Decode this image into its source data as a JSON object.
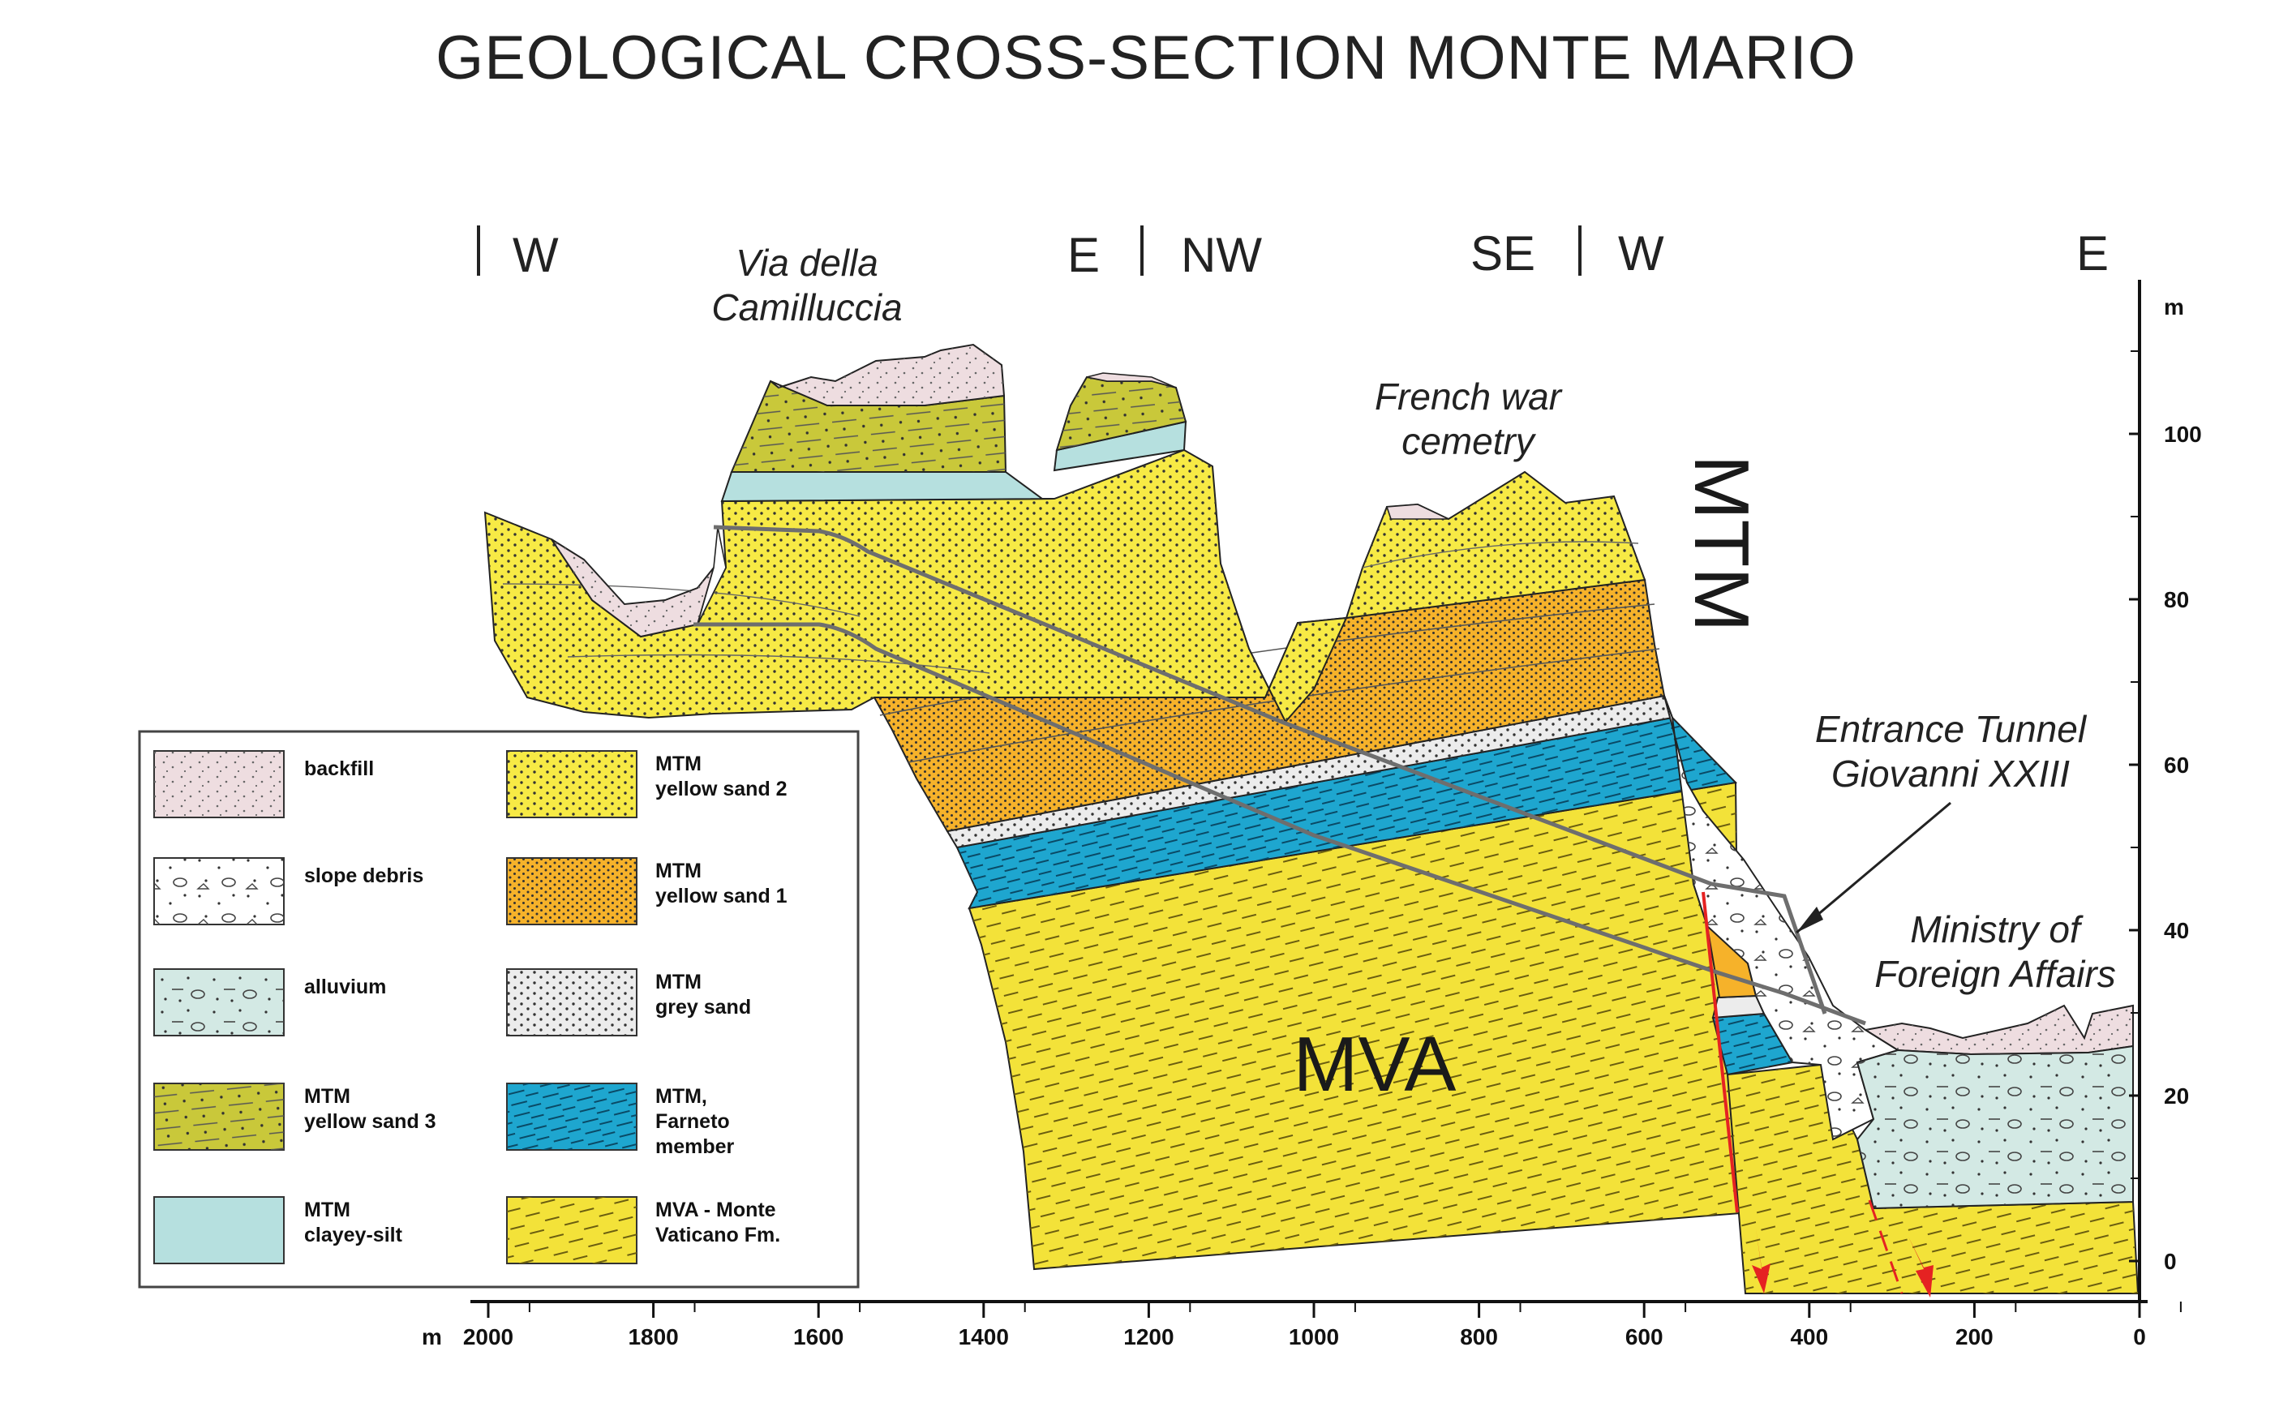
{
  "title": "GEOLOGICAL CROSS-SECTION MONTE MARIO",
  "section_directions": [
    "W",
    "E",
    "NW",
    "SE",
    "W",
    "E"
  ],
  "place_labels": {
    "via_camilluccia": [
      "Via della",
      "Camilluccia"
    ],
    "french_cemetery": [
      "French war",
      "cemetry"
    ],
    "tunnel_entrance": [
      "Entrance Tunnel",
      "Giovanni XXIII"
    ],
    "ministry": [
      "Ministry of",
      "Foreign Affairs"
    ]
  },
  "unit_labels": {
    "mtm": "MTM",
    "mva": "MVA"
  },
  "x_axis": {
    "unit": "m",
    "ticks": [
      "2000",
      "1800",
      "1600",
      "1400",
      "1200",
      "1000",
      "800",
      "600",
      "400",
      "200",
      "0"
    ]
  },
  "y_axis": {
    "unit": "m",
    "ticks": [
      "100",
      "80",
      "60",
      "40",
      "20",
      "0"
    ]
  },
  "legend": [
    {
      "lines": [
        "backfill"
      ],
      "color": "#eedde0",
      "pattern": "backfill"
    },
    {
      "lines": [
        "slope debris"
      ],
      "color": "#ffffff",
      "pattern": "debris"
    },
    {
      "lines": [
        "alluvium"
      ],
      "color": "#d3e9e4",
      "pattern": "alluvium"
    },
    {
      "lines": [
        "MTM",
        "yellow sand 3"
      ],
      "color": "#c9c83a",
      "pattern": "ys3"
    },
    {
      "lines": [
        "MTM",
        "clayey-silt"
      ],
      "color": "#b6e0df",
      "pattern": "none"
    },
    {
      "lines": [
        "MTM",
        "yellow sand  2"
      ],
      "color": "#f7ea45",
      "pattern": "ys2"
    },
    {
      "lines": [
        "MTM",
        "yellow sand 1"
      ],
      "color": "#f6b22a",
      "pattern": "ys1"
    },
    {
      "lines": [
        "MTM",
        "grey sand"
      ],
      "color": "#ececec",
      "pattern": "grey"
    },
    {
      "lines": [
        "MTM,",
        " Farneto",
        "member"
      ],
      "color": "#1ea6cf",
      "pattern": "farneto"
    },
    {
      "lines": [
        "MVA - Monte",
        "Vaticano Fm."
      ],
      "color": "#f3e239",
      "pattern": "mva"
    }
  ]
}
